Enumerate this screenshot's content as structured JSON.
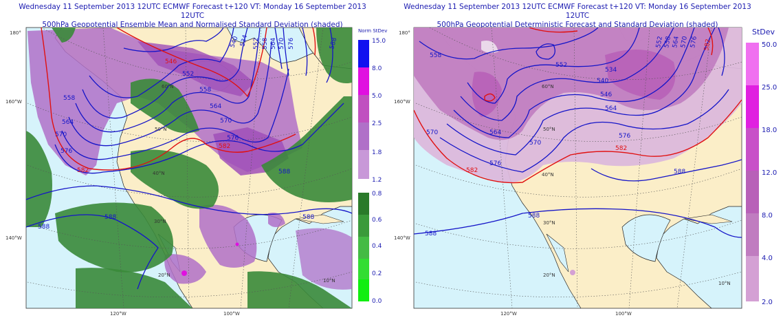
{
  "left_panel": {
    "title_line1": "Wednesday 11 September 2013 12UTC ECMWF Forecast t+120  VT: Monday 16 September 2013 12UTC",
    "title_line2": "500hPa Geopotential Ensemble Mean and Normalised Standard Deviation (shaded)",
    "legend_title": "Norm StDev",
    "legend_labels": [
      "15.0",
      "8.0",
      "5.0",
      "2.5",
      "1.8",
      "1.2",
      "0.8",
      "0.6",
      "0.4",
      "0.2",
      "0.0"
    ],
    "legend_colors_top": [
      "#1010f0",
      "#e010e0",
      "#c050c0",
      "#b070c8",
      "#c898d8"
    ],
    "legend_colors_bottom": [
      "#2a7a2a",
      "#3a9a3a",
      "#44bb44",
      "#33dd33",
      "#11ee11"
    ],
    "contour_labels": [
      "588",
      "588",
      "588",
      "588",
      "582",
      "582",
      "576",
      "576",
      "570",
      "570",
      "564",
      "564",
      "558",
      "558",
      "552",
      "546",
      "540",
      "534",
      "552",
      "558",
      "564",
      "570",
      "576",
      "588"
    ],
    "lat_labels": [
      "60°N",
      "50°N",
      "40°N",
      "30°N",
      "20°N",
      "10°N"
    ],
    "lon_edge_labels": [
      "180°",
      "160°W",
      "140°W"
    ],
    "lon_bottom_labels": [
      "120°W",
      "100°W"
    ]
  },
  "right_panel": {
    "title_line1": "Wednesday 11 September 2013 12UTC ECMWF Forecast t+120  VT: Monday 16 September 2013 12UTC",
    "title_line2": "500hPa Geopotential Deterministic Forecast and Standard Deviation (shaded)",
    "legend_title": "StDev",
    "legend_labels": [
      "50.0",
      "25.0",
      "18.0",
      "12.0",
      "8.0",
      "4.0",
      "2.0"
    ],
    "legend_colors": [
      "#f070f0",
      "#e020e0",
      "#c850c8",
      "#b860b8",
      "#c07cc0",
      "#d4a0d4",
      "#e4c4e4"
    ],
    "contour_labels": [
      "588",
      "588",
      "588",
      "582",
      "582",
      "576",
      "576",
      "570",
      "570",
      "564",
      "564",
      "558",
      "552",
      "546",
      "540",
      "534",
      "552",
      "558",
      "564",
      "570",
      "576",
      "582"
    ],
    "lat_labels": [
      "60°N",
      "50°N",
      "40°N",
      "30°N",
      "20°N",
      "10°N"
    ],
    "lon_edge_labels": [
      "180°",
      "160°W",
      "140°W"
    ],
    "lon_bottom_labels": [
      "120°W",
      "100°W"
    ]
  },
  "colors": {
    "ocean": "#d6f3fb",
    "land": "#fbeec8",
    "contour_blue": "#1414c8",
    "contour_red": "#e01010",
    "title_blue": "#1a1ab0"
  }
}
